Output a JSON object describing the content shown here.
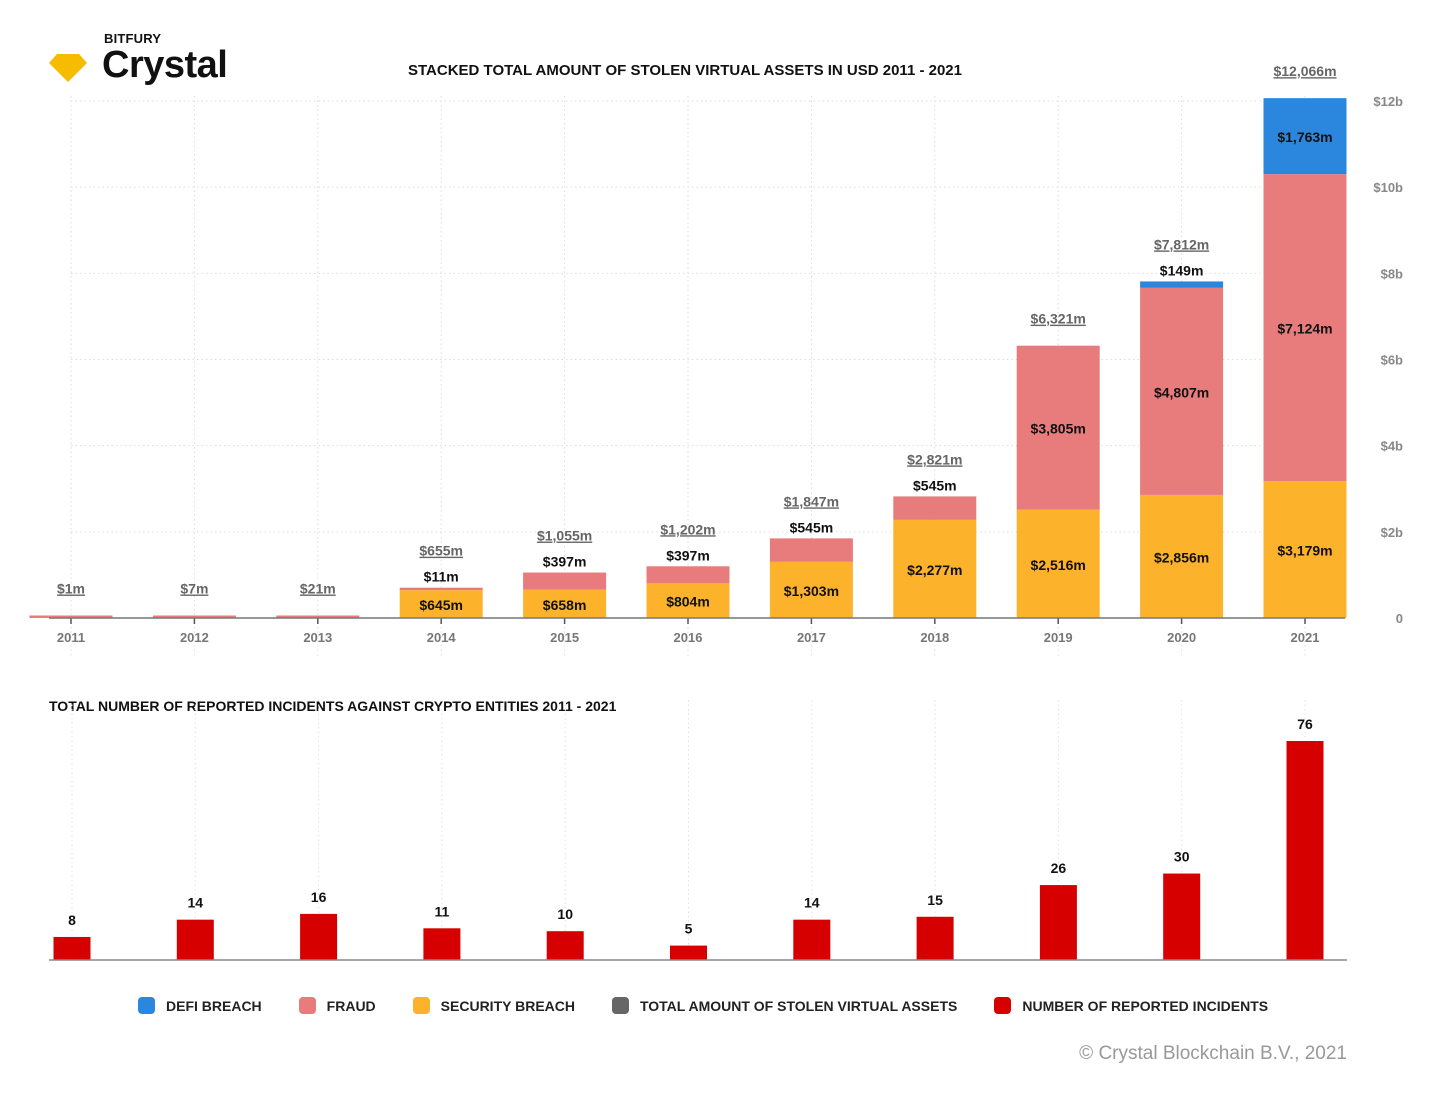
{
  "brand": {
    "sub": "BITFURY",
    "name": "Crystal",
    "gem_color": "#F7BB00"
  },
  "copyright": "© Crystal Blockchain B.V., 2021",
  "legend": [
    {
      "label": "DEFI BREACH",
      "color": "#2B87DE"
    },
    {
      "label": "FRAUD",
      "color": "#E87C7C"
    },
    {
      "label": "SECURITY BREACH",
      "color": "#FDB22B"
    },
    {
      "label": "TOTAL AMOUNT OF STOLEN VIRTUAL ASSETS",
      "color": "#666666"
    },
    {
      "label": "NUMBER OF REPORTED INCIDENTS",
      "color": "#D60000"
    }
  ],
  "chart_data": [
    {
      "type": "bar",
      "stacked": true,
      "title": "STACKED TOTAL AMOUNT OF STOLEN VIRTUAL ASSETS IN USD 2011 - 2021",
      "xlabel": "",
      "ylabel": "",
      "unit": "USD millions",
      "ylim": [
        0,
        12000
      ],
      "yticks": [
        0,
        2000,
        4000,
        6000,
        8000,
        10000,
        12000
      ],
      "ytick_labels": [
        "0",
        "$2b",
        "$4b",
        "$6b",
        "$8b",
        "$10b",
        "$12b"
      ],
      "y_axis_side": "right",
      "grid": true,
      "categories": [
        "2011",
        "2012",
        "2013",
        "2014",
        "2015",
        "2016",
        "2017",
        "2018",
        "2019",
        "2020",
        "2021"
      ],
      "series": [
        {
          "name": "SECURITY BREACH",
          "color": "#FDB22B",
          "values": [
            0,
            0,
            0,
            645,
            658,
            804,
            1303,
            2277,
            2516,
            2856,
            3179
          ],
          "labels": [
            "",
            "",
            "",
            "$645m",
            "$658m",
            "$804m",
            "$1,303m",
            "$2,277m",
            "$2,516m",
            "$2,856m",
            "$3,179m"
          ]
        },
        {
          "name": "FRAUD",
          "color": "#E87C7C",
          "values": [
            1,
            7,
            21,
            11,
            397,
            397,
            545,
            545,
            3805,
            4807,
            7124
          ],
          "labels": [
            "",
            "",
            "",
            "$11m",
            "$397m",
            "$397m",
            "$545m",
            "$545m",
            "$3,805m",
            "$4,807m",
            "$7,124m"
          ]
        },
        {
          "name": "DEFI BREACH",
          "color": "#2B87DE",
          "values": [
            0,
            0,
            0,
            0,
            0,
            0,
            0,
            0,
            0,
            149,
            1763
          ],
          "labels": [
            "",
            "",
            "",
            "",
            "",
            "",
            "",
            "",
            "",
            "$149m",
            "$1,763m"
          ]
        }
      ],
      "totals": [
        1,
        7,
        21,
        655,
        1055,
        1202,
        1847,
        2821,
        6321,
        7812,
        12066
      ],
      "total_labels": [
        "$1m",
        "$7m",
        "$21m",
        "$655m",
        "$1,055m",
        "$1,202m",
        "$1,847m",
        "$2,821m",
        "$6,321m",
        "$7,812m",
        "$12,066m"
      ]
    },
    {
      "type": "bar",
      "title": "TOTAL NUMBER OF REPORTED INCIDENTS AGAINST CRYPTO ENTITIES 2011 - 2021",
      "xlabel": "",
      "ylabel": "",
      "ylim": [
        0,
        76
      ],
      "grid": true,
      "categories": [
        "2011",
        "2012",
        "2013",
        "2014",
        "2015",
        "2016",
        "2017",
        "2018",
        "2019",
        "2020",
        "2021"
      ],
      "series": [
        {
          "name": "NUMBER OF REPORTED INCIDENTS",
          "color": "#D60000",
          "values": [
            8,
            14,
            16,
            11,
            10,
            5,
            14,
            15,
            26,
            30,
            76
          ]
        }
      ]
    }
  ]
}
